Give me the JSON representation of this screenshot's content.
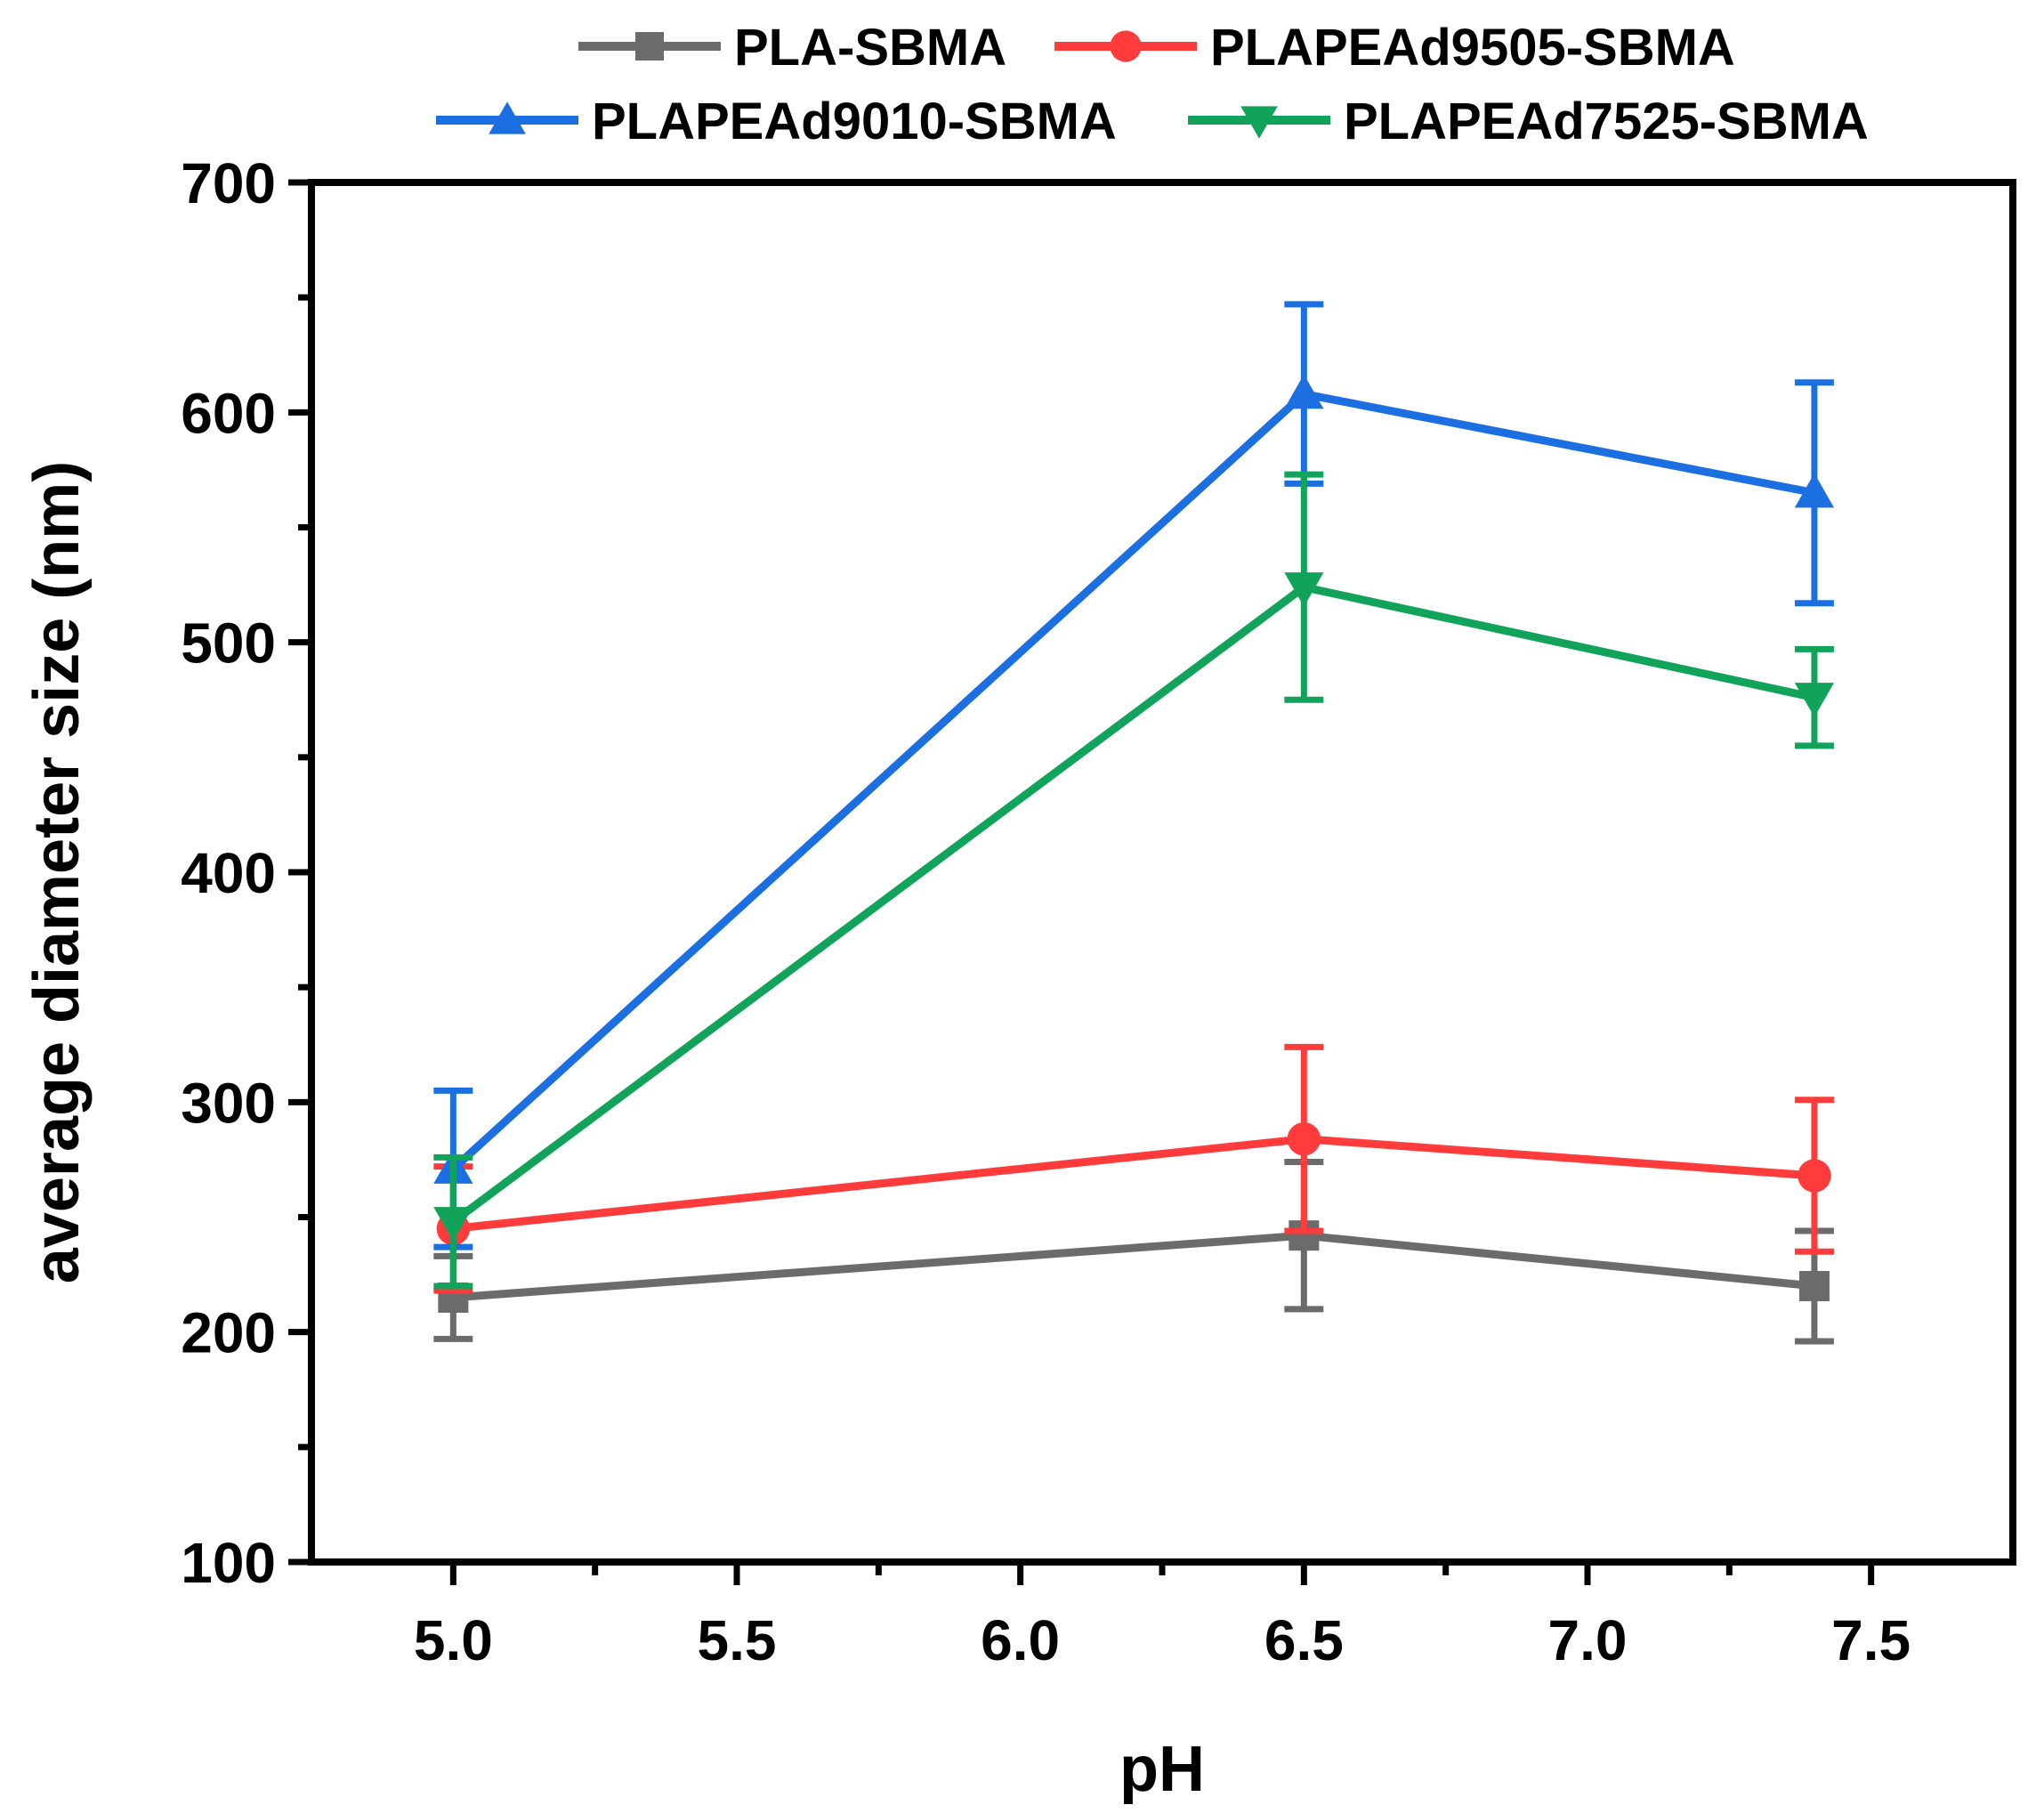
{
  "chart_data": {
    "type": "line",
    "title": "",
    "xlabel": "pH",
    "ylabel": "average diameter size (nm)",
    "xlim": [
      4.75,
      7.75
    ],
    "ylim": [
      100,
      700
    ],
    "xticks": [
      5.0,
      5.5,
      6.0,
      6.5,
      7.0,
      7.5
    ],
    "xtick_labels": [
      "5.0",
      "5.5",
      "6.0",
      "6.5",
      "7.0",
      "7.5"
    ],
    "yticks": [
      100,
      200,
      300,
      400,
      500,
      600,
      700
    ],
    "ytick_labels": [
      "100",
      "200",
      "300",
      "400",
      "500",
      "600",
      "700"
    ],
    "grid": false,
    "legend_position": "top",
    "x": [
      5.0,
      6.5,
      7.4
    ],
    "series": [
      {
        "name": "PLA-SBMA",
        "color": "#6b6b6b",
        "marker": "square",
        "values": [
          215,
          242,
          220
        ],
        "errors": [
          18,
          32,
          24
        ]
      },
      {
        "name": "PLAPEAd9505-SBMA",
        "color": "#ff3b3b",
        "marker": "circle",
        "values": [
          245,
          284,
          268
        ],
        "errors": [
          27,
          40,
          33
        ]
      },
      {
        "name": "PLAPEAd9010-SBMA",
        "color": "#1b6fe0",
        "marker": "triangle-up",
        "values": [
          271,
          608,
          565
        ],
        "errors": [
          34,
          39,
          48
        ]
      },
      {
        "name": "PLAPEAd7525-SBMA",
        "color": "#12a35a",
        "marker": "triangle-down",
        "values": [
          248,
          524,
          476
        ],
        "errors": [
          28,
          49,
          21
        ]
      }
    ]
  }
}
